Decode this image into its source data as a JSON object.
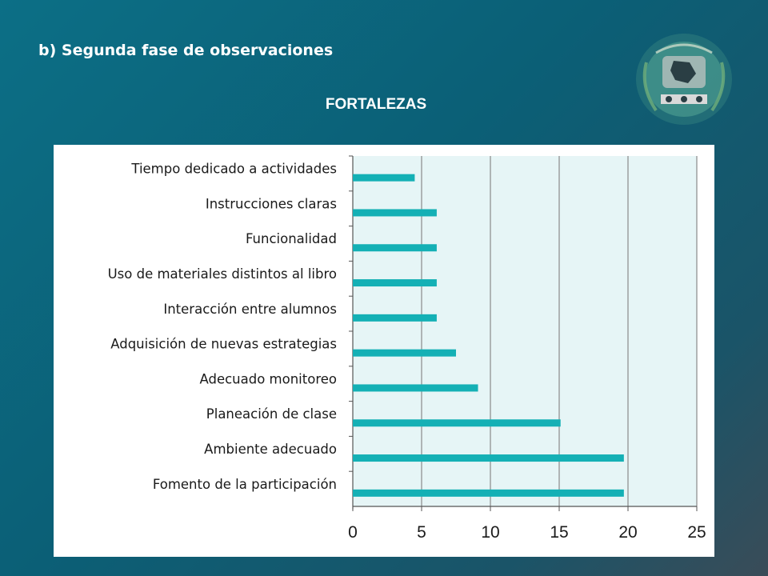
{
  "slide": {
    "subtitle": "b) Segunda fase de observaciones",
    "emblem": "school-crest-logo"
  },
  "colors": {
    "background": "#0b6a82",
    "bar": "#14b0b5",
    "plot_area": "#e6f5f6",
    "grid": "#8a8a8a"
  },
  "chart_data": {
    "type": "bar",
    "orientation": "horizontal",
    "title": "FORTALEZAS",
    "categories": [
      "Tiempo dedicado a actividades",
      "Instrucciones claras",
      "Funcionalidad",
      "Uso de materiales distintos al libro",
      "Interacción entre alumnos",
      "Adquisición de nuevas estrategias",
      "Adecuado monitoreo",
      "Planeación de clase",
      "Ambiente adecuado",
      "Fomento de la participación"
    ],
    "values": [
      4.5,
      6.1,
      6.1,
      6.1,
      6.1,
      7.5,
      9.1,
      15.1,
      19.7,
      19.7
    ],
    "xlim": [
      0,
      25
    ],
    "xticks": [
      "0",
      "5",
      "10",
      "15",
      "20",
      "25"
    ],
    "xlabel": "",
    "ylabel": "",
    "grid": "vertical",
    "legend": "none"
  }
}
